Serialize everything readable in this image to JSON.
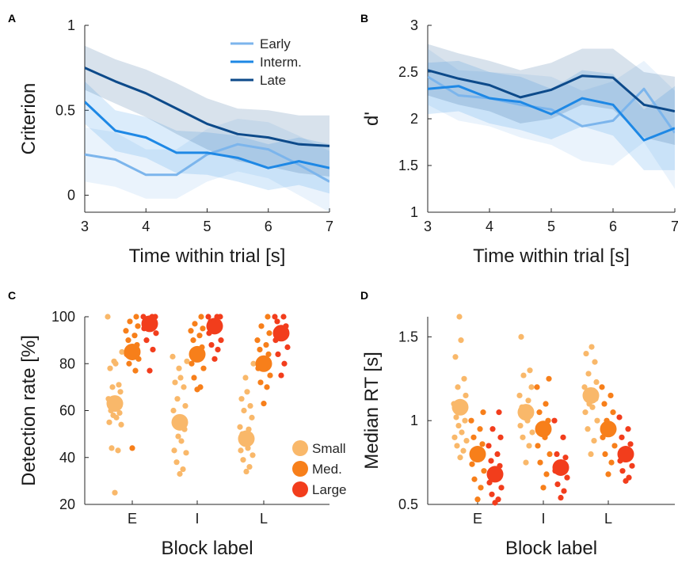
{
  "colors": {
    "early": "#7cb5ec",
    "interm": "#1e88e5",
    "late": "#0d4a8a",
    "small": "#f9b86a",
    "med": "#f77f1a",
    "large": "#f23d1c",
    "axis": "#262626"
  },
  "chart_data": [
    {
      "panel": "A",
      "type": "line",
      "xlabel": "Time within trial [s]",
      "ylabel": "Criterion",
      "xlim": [
        3,
        7
      ],
      "ylim": [
        -0.1,
        1
      ],
      "xticks": [
        3,
        4,
        5,
        6,
        7
      ],
      "yticks": [
        0,
        0.5,
        1
      ],
      "ytick_labels": [
        "0",
        "0.5",
        "1"
      ],
      "legend_position": "top-right",
      "x": [
        3,
        3.5,
        4,
        4.5,
        5,
        5.5,
        6,
        6.5,
        7
      ],
      "series": [
        {
          "name": "Early",
          "color_key": "early",
          "values": [
            0.24,
            0.21,
            0.12,
            0.12,
            0.24,
            0.3,
            0.27,
            0.18,
            0.08
          ],
          "lower": [
            0.08,
            0.05,
            -0.02,
            -0.02,
            0.08,
            0.14,
            0.1,
            0.0,
            -0.1
          ],
          "upper": [
            0.4,
            0.37,
            0.27,
            0.27,
            0.39,
            0.45,
            0.43,
            0.35,
            0.26
          ]
        },
        {
          "name": "Interm.",
          "color_key": "interm",
          "values": [
            0.55,
            0.38,
            0.34,
            0.25,
            0.25,
            0.22,
            0.16,
            0.2,
            0.16
          ],
          "lower": [
            0.42,
            0.26,
            0.22,
            0.13,
            0.12,
            0.08,
            0.03,
            0.06,
            0.01
          ],
          "upper": [
            0.67,
            0.5,
            0.46,
            0.38,
            0.37,
            0.35,
            0.3,
            0.34,
            0.3
          ]
        },
        {
          "name": "Late",
          "color_key": "late",
          "values": [
            0.75,
            0.67,
            0.6,
            0.51,
            0.42,
            0.36,
            0.34,
            0.3,
            0.29
          ],
          "lower": [
            0.62,
            0.54,
            0.46,
            0.36,
            0.27,
            0.2,
            0.17,
            0.13,
            0.11
          ],
          "upper": [
            0.88,
            0.8,
            0.74,
            0.66,
            0.57,
            0.51,
            0.5,
            0.47,
            0.47
          ]
        }
      ]
    },
    {
      "panel": "B",
      "type": "line",
      "xlabel": "Time within trial [s]",
      "ylabel": "d'",
      "xlim": [
        3,
        7
      ],
      "ylim": [
        1,
        3
      ],
      "xticks": [
        3,
        4,
        5,
        6,
        7
      ],
      "yticks": [
        1,
        1.5,
        2,
        2.5,
        3
      ],
      "ytick_labels": [
        "1",
        "1.5",
        "2",
        "2.5",
        "3"
      ],
      "x": [
        3,
        3.5,
        4,
        4.5,
        5,
        5.5,
        6,
        6.5,
        7
      ],
      "series": [
        {
          "color_key": "early",
          "values": [
            2.45,
            2.25,
            2.22,
            2.15,
            2.1,
            1.92,
            1.98,
            2.32,
            1.85
          ],
          "lower": [
            2.15,
            1.98,
            1.92,
            1.8,
            1.72,
            1.55,
            1.5,
            1.75,
            1.25
          ],
          "upper": [
            2.75,
            2.52,
            2.5,
            2.48,
            2.45,
            2.3,
            2.4,
            2.62,
            2.3
          ]
        },
        {
          "color_key": "interm",
          "values": [
            2.32,
            2.35,
            2.22,
            2.18,
            2.05,
            2.22,
            2.15,
            1.77,
            1.9
          ],
          "lower": [
            2.05,
            2.08,
            1.95,
            1.88,
            1.78,
            1.92,
            1.82,
            1.45,
            1.45
          ],
          "upper": [
            2.6,
            2.62,
            2.5,
            2.45,
            2.32,
            2.52,
            2.48,
            2.1,
            2.35
          ]
        },
        {
          "color_key": "late",
          "values": [
            2.52,
            2.43,
            2.36,
            2.23,
            2.31,
            2.46,
            2.44,
            2.15,
            2.08
          ],
          "lower": [
            2.25,
            2.15,
            2.08,
            1.95,
            2.0,
            2.15,
            2.1,
            1.8,
            1.72
          ],
          "upper": [
            2.8,
            2.7,
            2.62,
            2.52,
            2.6,
            2.75,
            2.75,
            2.5,
            2.45
          ]
        }
      ]
    },
    {
      "panel": "C",
      "type": "scatter",
      "xlabel": "Block label",
      "ylabel": "Detection rate [%]",
      "ylim": [
        20,
        100
      ],
      "yticks": [
        20,
        40,
        60,
        80,
        100
      ],
      "categories": [
        "E",
        "I",
        "L"
      ],
      "legend_position": "bottom-right",
      "series": [
        {
          "name": "Small",
          "color_key": "small",
          "means": [
            63,
            55,
            48
          ],
          "points": [
            [
              25,
              43,
              44,
              54,
              55,
              57,
              58,
              59,
              60,
              62,
              65,
              68,
              70,
              71,
              78,
              80,
              81,
              85,
              100
            ],
            [
              33,
              35,
              38,
              42,
              43,
              47,
              49,
              52,
              55,
              57,
              60,
              62,
              65,
              70,
              72,
              74,
              78,
              81,
              83
            ],
            [
              34,
              36,
              39,
              41,
              43,
              44,
              46,
              48,
              50,
              52,
              53,
              57,
              60,
              62,
              65,
              68,
              74,
              80
            ]
          ]
        },
        {
          "name": "Med.",
          "color_key": "med",
          "means": [
            85,
            84,
            80
          ],
          "points": [
            [
              44,
              77,
              80,
              82,
              84,
              86,
              87,
              88,
              90,
              92,
              94,
              96,
              98,
              100
            ],
            [
              69,
              70,
              74,
              78,
              80,
              83,
              85,
              87,
              90,
              92,
              94,
              95,
              97,
              100
            ],
            [
              63,
              70,
              72,
              75,
              78,
              80,
              82,
              84,
              86,
              88,
              90,
              93,
              96,
              100
            ]
          ]
        },
        {
          "name": "Large",
          "color_key": "large",
          "means": [
            97,
            96,
            93
          ],
          "points": [
            [
              77,
              86,
              90,
              93,
              95,
              96,
              97,
              98,
              99,
              100,
              100,
              100
            ],
            [
              82,
              86,
              88,
              90,
              93,
              95,
              96,
              97,
              98,
              100,
              100,
              100
            ],
            [
              75,
              80,
              84,
              87,
              90,
              93,
              95,
              96,
              98,
              100,
              100
            ]
          ]
        }
      ]
    },
    {
      "panel": "D",
      "type": "scatter",
      "xlabel": "Block label",
      "ylabel": "Median RT [s]",
      "ylim": [
        0.5,
        1.62
      ],
      "yticks": [
        0.5,
        1,
        1.5
      ],
      "ytick_labels": [
        "0.5",
        "1",
        "1.5"
      ],
      "categories": [
        "E",
        "I",
        "L"
      ],
      "series": [
        {
          "name": "Small",
          "color_key": "small",
          "means": [
            1.08,
            1.05,
            1.15
          ],
          "points": [
            [
              0.78,
              0.82,
              0.85,
              0.88,
              0.9,
              0.93,
              0.97,
              1.0,
              1.02,
              1.05,
              1.1,
              1.15,
              1.2,
              1.25,
              1.38,
              1.48,
              1.62
            ],
            [
              0.75,
              0.85,
              0.9,
              0.93,
              0.97,
              1.0,
              1.02,
              1.05,
              1.08,
              1.12,
              1.15,
              1.2,
              1.27,
              1.3,
              1.5
            ],
            [
              0.8,
              0.88,
              0.95,
              1.0,
              1.05,
              1.08,
              1.1,
              1.13,
              1.15,
              1.18,
              1.2,
              1.23,
              1.28,
              1.35,
              1.4,
              1.44
            ]
          ]
        },
        {
          "name": "Med.",
          "color_key": "med",
          "means": [
            0.8,
            0.95,
            0.95
          ],
          "points": [
            [
              0.53,
              0.6,
              0.65,
              0.7,
              0.74,
              0.78,
              0.82,
              0.86,
              0.9,
              0.95,
              1.0,
              1.05
            ],
            [
              0.6,
              0.68,
              0.75,
              0.8,
              0.85,
              0.9,
              0.95,
              1.0,
              1.05,
              1.1,
              1.2,
              1.25
            ],
            [
              0.68,
              0.75,
              0.8,
              0.85,
              0.9,
              0.95,
              1.0,
              1.05,
              1.1,
              1.15,
              1.2
            ]
          ]
        },
        {
          "name": "Large",
          "color_key": "large",
          "means": [
            0.68,
            0.72,
            0.8
          ],
          "points": [
            [
              0.51,
              0.53,
              0.56,
              0.6,
              0.63,
              0.66,
              0.7,
              0.73,
              0.76,
              0.8,
              0.85,
              0.9,
              0.95,
              1.05
            ],
            [
              0.54,
              0.58,
              0.62,
              0.66,
              0.7,
              0.72,
              0.75,
              0.78,
              0.8,
              0.9,
              1.0
            ],
            [
              0.64,
              0.66,
              0.7,
              0.73,
              0.76,
              0.8,
              0.83,
              0.86,
              0.9,
              0.95,
              1.02
            ]
          ]
        }
      ]
    }
  ]
}
